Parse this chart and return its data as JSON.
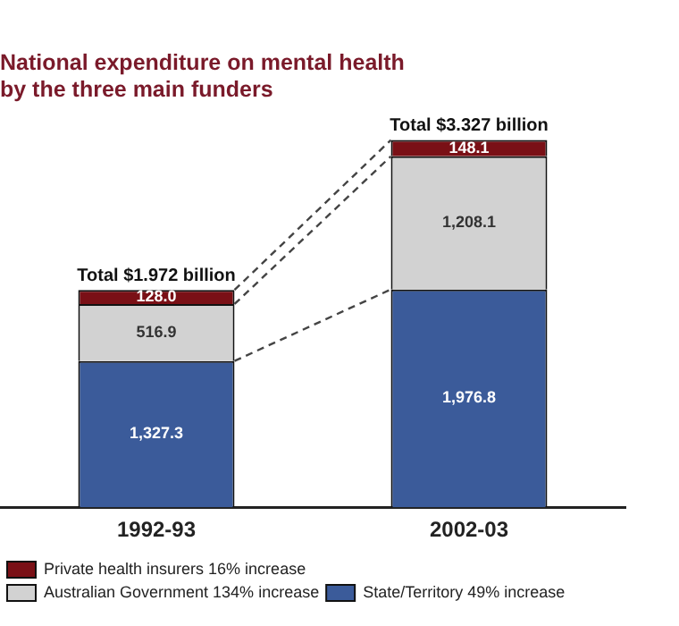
{
  "chart_data": {
    "type": "bar",
    "stacked": true,
    "title": "National expenditure on mental health\nby the three main funders",
    "categories": [
      "1992-93",
      "2002-03"
    ],
    "series": [
      {
        "name": "State/Territory 49% increase",
        "color": "#3b5b9a",
        "values": [
          1327.3,
          1976.8
        ],
        "value_labels": [
          "1,327.3",
          "1,976.8"
        ]
      },
      {
        "name": "Australian Government 134% increase",
        "color": "#d2d2d2",
        "values": [
          516.9,
          1208.1
        ],
        "value_labels": [
          "516.9",
          "1,208.1"
        ]
      },
      {
        "name": "Private health insurers 16% increase",
        "color": "#7a1016",
        "values": [
          128.0,
          148.1
        ],
        "value_labels": [
          "128.0",
          "148.1"
        ]
      }
    ],
    "totals": [
      "Total $1.972 billion",
      "Total $3.327 billion"
    ],
    "tick_labels": "x",
    "grid": false,
    "legend": "bottom"
  }
}
